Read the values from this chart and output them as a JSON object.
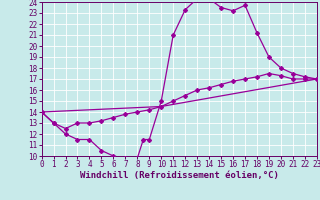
{
  "background_color": "#c8eaea",
  "grid_color": "#ffffff",
  "line_color": "#990099",
  "xlabel": "Windchill (Refroidissement éolien,°C)",
  "xlim": [
    0,
    23
  ],
  "ylim": [
    10,
    24
  ],
  "yticks": [
    10,
    11,
    12,
    13,
    14,
    15,
    16,
    17,
    18,
    19,
    20,
    21,
    22,
    23,
    24
  ],
  "xticks": [
    0,
    1,
    2,
    3,
    4,
    5,
    6,
    7,
    8,
    9,
    10,
    11,
    12,
    13,
    14,
    15,
    16,
    17,
    18,
    19,
    20,
    21,
    22,
    23
  ],
  "curve1_x": [
    0,
    1,
    2,
    3,
    4,
    5,
    6,
    7,
    8,
    8.5,
    9,
    10,
    11,
    12,
    13,
    14,
    15,
    16,
    17,
    18,
    19,
    20,
    21,
    22,
    23
  ],
  "curve1_y": [
    14.0,
    13.0,
    12.0,
    11.5,
    11.5,
    10.5,
    10.0,
    9.8,
    9.8,
    11.5,
    11.5,
    15.0,
    21.0,
    23.3,
    24.3,
    24.3,
    23.5,
    23.2,
    23.7,
    21.2,
    19.0,
    18.0,
    17.5,
    17.2,
    17.0
  ],
  "curve2_x": [
    0,
    1,
    2,
    3,
    4,
    5,
    6,
    7,
    8,
    9,
    10,
    11,
    12,
    13,
    14,
    15,
    16,
    17,
    18,
    19,
    20,
    21,
    22,
    23
  ],
  "curve2_y": [
    14.0,
    13.0,
    12.5,
    13.0,
    13.0,
    13.2,
    13.5,
    13.8,
    14.0,
    14.2,
    14.5,
    15.0,
    15.5,
    16.0,
    16.2,
    16.5,
    16.8,
    17.0,
    17.2,
    17.5,
    17.3,
    17.0,
    17.0,
    17.0
  ],
  "curve3_x": [
    0,
    10,
    23
  ],
  "curve3_y": [
    14.0,
    14.5,
    17.0
  ],
  "marker_style": "D",
  "marker_size": 2.0,
  "linewidth": 0.9,
  "xlabel_fontsize": 6.5,
  "tick_fontsize": 5.5
}
